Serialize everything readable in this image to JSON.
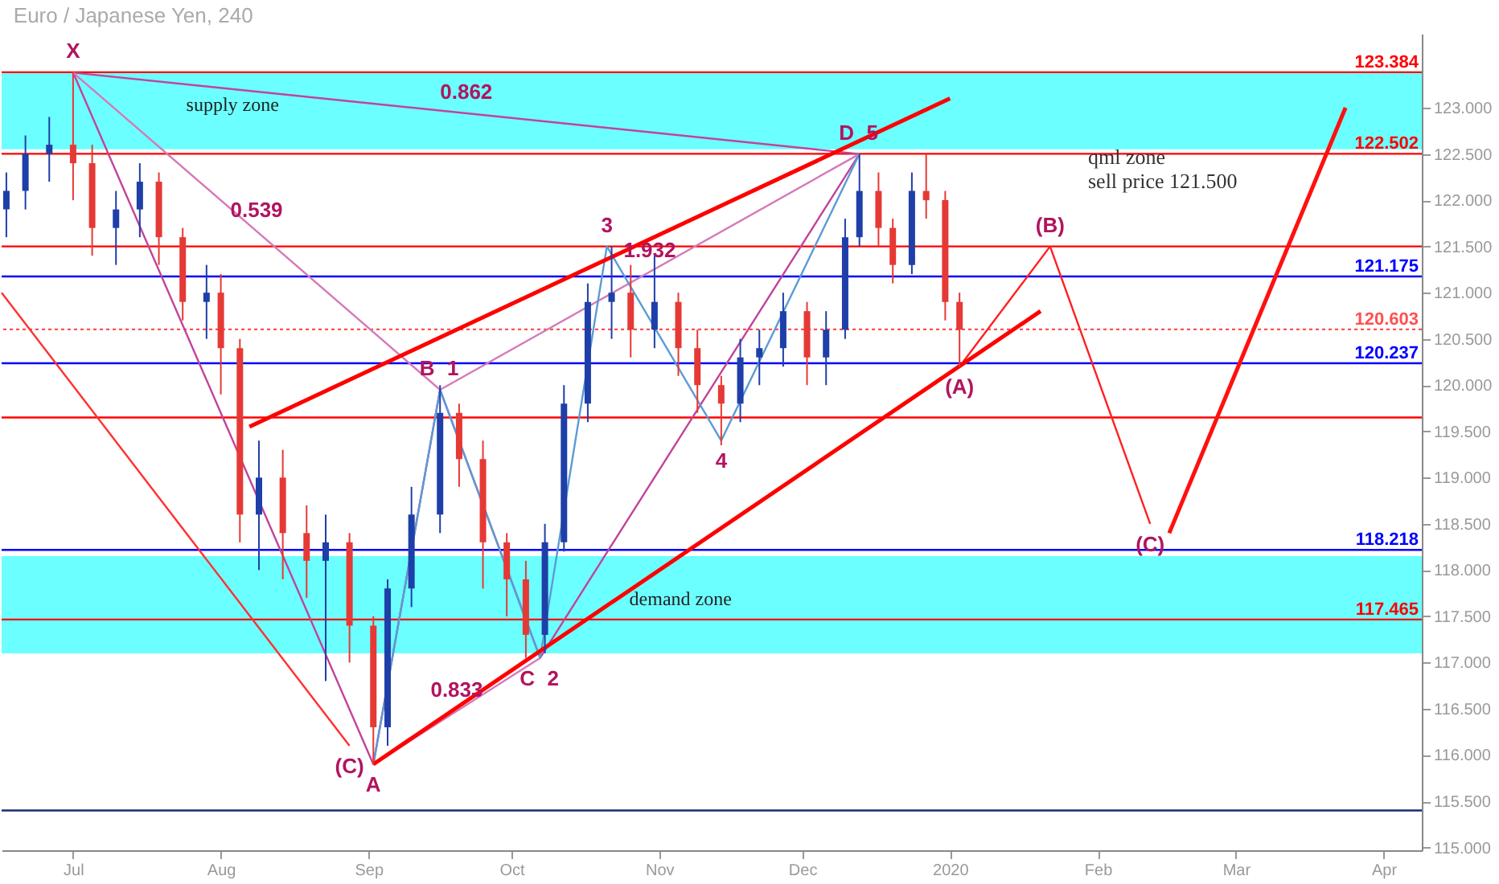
{
  "chart_data": {
    "type": "candlestick",
    "title": "Euro / Japanese Yen, 240",
    "x": [
      "2019-06-17",
      "2019-06-21",
      "2019-06-26",
      "2019-07-01",
      "2019-07-05",
      "2019-07-10",
      "2019-07-15",
      "2019-07-19",
      "2019-07-24",
      "2019-07-29",
      "2019-08-01",
      "2019-08-05",
      "2019-08-09",
      "2019-08-14",
      "2019-08-19",
      "2019-08-23",
      "2019-08-28",
      "2019-09-02",
      "2019-09-05",
      "2019-09-10",
      "2019-09-16",
      "2019-09-20",
      "2019-09-25",
      "2019-09-30",
      "2019-10-04",
      "2019-10-08",
      "2019-10-12",
      "2019-10-17",
      "2019-10-22",
      "2019-10-26",
      "2019-10-31",
      "2019-11-05",
      "2019-11-09",
      "2019-11-14",
      "2019-11-18",
      "2019-11-22",
      "2019-11-27",
      "2019-12-02",
      "2019-12-06",
      "2019-12-10",
      "2019-12-13",
      "2019-12-17",
      "2019-12-20",
      "2019-12-24",
      "2019-12-27",
      "2019-12-31",
      "2020-01-03"
    ],
    "ohlc": [
      [
        121.9,
        122.3,
        121.6,
        122.1
      ],
      [
        122.1,
        122.7,
        121.9,
        122.5
      ],
      [
        122.5,
        122.9,
        122.2,
        122.6
      ],
      [
        122.6,
        123.38,
        122.0,
        122.4
      ],
      [
        122.4,
        122.6,
        121.4,
        121.7
      ],
      [
        121.7,
        122.1,
        121.3,
        121.9
      ],
      [
        121.9,
        122.4,
        121.6,
        122.2
      ],
      [
        122.2,
        122.3,
        121.3,
        121.6
      ],
      [
        121.6,
        121.7,
        120.7,
        120.9
      ],
      [
        120.9,
        121.3,
        120.5,
        121.0
      ],
      [
        121.0,
        121.2,
        119.9,
        120.4
      ],
      [
        120.4,
        120.5,
        118.3,
        118.6
      ],
      [
        118.6,
        119.4,
        118.0,
        119.0
      ],
      [
        119.0,
        119.3,
        117.9,
        118.4
      ],
      [
        118.4,
        118.7,
        117.7,
        118.1
      ],
      [
        118.1,
        118.6,
        116.8,
        118.3
      ],
      [
        118.3,
        118.4,
        117.0,
        117.4
      ],
      [
        117.4,
        117.5,
        115.9,
        116.3
      ],
      [
        116.3,
        117.9,
        116.1,
        117.8
      ],
      [
        117.8,
        118.9,
        117.6,
        118.6
      ],
      [
        118.6,
        120.0,
        118.4,
        119.7
      ],
      [
        119.7,
        119.8,
        118.9,
        119.2
      ],
      [
        119.2,
        119.4,
        117.8,
        118.3
      ],
      [
        118.3,
        118.4,
        117.5,
        117.9
      ],
      [
        117.9,
        118.1,
        117.05,
        117.3
      ],
      [
        117.3,
        118.5,
        117.1,
        118.3
      ],
      [
        118.3,
        120.0,
        118.2,
        119.8
      ],
      [
        119.8,
        121.1,
        119.6,
        120.9
      ],
      [
        120.9,
        121.5,
        120.5,
        121.0
      ],
      [
        121.0,
        121.3,
        120.3,
        120.6
      ],
      [
        120.6,
        121.4,
        120.4,
        120.9
      ],
      [
        120.9,
        121.0,
        120.1,
        120.4
      ],
      [
        120.4,
        120.6,
        119.7,
        120.0
      ],
      [
        120.0,
        120.1,
        119.35,
        119.8
      ],
      [
        119.8,
        120.5,
        119.6,
        120.3
      ],
      [
        120.3,
        120.6,
        120.0,
        120.4
      ],
      [
        120.4,
        121.0,
        120.2,
        120.8
      ],
      [
        120.8,
        120.9,
        120.0,
        120.3
      ],
      [
        120.3,
        120.8,
        120.0,
        120.6
      ],
      [
        120.6,
        121.8,
        120.5,
        121.6
      ],
      [
        121.6,
        122.5,
        121.5,
        122.1
      ],
      [
        122.1,
        122.3,
        121.5,
        121.7
      ],
      [
        121.7,
        121.8,
        121.1,
        121.3
      ],
      [
        121.3,
        122.3,
        121.2,
        122.1
      ],
      [
        122.1,
        122.5,
        121.8,
        122.0
      ],
      [
        122.0,
        122.1,
        120.7,
        120.9
      ],
      [
        120.9,
        121.0,
        120.2,
        120.6
      ]
    ],
    "series": [
      {
        "type": "line",
        "color": "#c2439a",
        "x": [
          "2019-07-01",
          "2019-09-02",
          "2019-09-16",
          "2019-10-07",
          "2019-12-13"
        ],
        "values": [
          123.38,
          115.9,
          119.95,
          117.05,
          122.5
        ]
      },
      {
        "type": "line",
        "color": "#c2439a",
        "x": [
          "2019-07-01",
          "2019-12-13"
        ],
        "values": [
          123.38,
          122.5
        ]
      },
      {
        "type": "line",
        "color": "#d47ab8",
        "x": [
          "2019-07-01",
          "2019-09-16"
        ],
        "values": [
          123.38,
          119.95
        ]
      },
      {
        "type": "line",
        "color": "#d47ab8",
        "x": [
          "2019-09-02",
          "2019-10-07"
        ],
        "values": [
          115.9,
          117.05
        ]
      },
      {
        "type": "line",
        "color": "#d47ab8",
        "x": [
          "2019-09-16",
          "2019-12-13"
        ],
        "values": [
          119.95,
          122.5
        ]
      },
      {
        "type": "line",
        "color": "#5b9bd5",
        "x": [
          "2019-09-02",
          "2019-09-16",
          "2019-10-07",
          "2019-10-21",
          "2019-11-14",
          "2019-12-13"
        ],
        "values": [
          115.9,
          119.95,
          117.05,
          121.5,
          119.4,
          122.5
        ]
      },
      {
        "type": "line",
        "color": "#ff2020",
        "x": [
          "2020-01-03",
          "2020-01-22",
          "2020-02-12"
        ],
        "values": [
          120.2,
          121.5,
          118.5
        ]
      },
      {
        "type": "line",
        "color": "#ff3030",
        "x": [
          "2019-06-16",
          "2019-08-28"
        ],
        "values": [
          121.0,
          116.1
        ]
      },
      {
        "type": "line",
        "color": "#ff1010",
        "x": [
          "2020-02-16",
          "2020-03-24"
        ],
        "values": [
          118.4,
          123.0
        ]
      },
      {
        "type": "line",
        "color": "#ff0000",
        "x": [
          "2019-08-07",
          "2020-01-01"
        ],
        "values": [
          119.55,
          123.1
        ]
      },
      {
        "type": "line",
        "color": "#ff0000",
        "x": [
          "2019-09-02",
          "2020-01-20"
        ],
        "values": [
          115.9,
          120.8
        ]
      }
    ],
    "xlim": [
      "2019-06-16",
      "2020-04-09"
    ],
    "xticks": [
      {
        "value": "2019-07-01",
        "label": "Jul"
      },
      {
        "value": "2019-08-01",
        "label": "Aug"
      },
      {
        "value": "2019-09-01",
        "label": "Sep"
      },
      {
        "value": "2019-10-01",
        "label": "Oct"
      },
      {
        "value": "2019-11-01",
        "label": "Nov"
      },
      {
        "value": "2019-12-01",
        "label": "Dec"
      },
      {
        "value": "2020-01-01",
        "label": "2020"
      },
      {
        "value": "2020-02-01",
        "label": "Feb"
      },
      {
        "value": "2020-03-01",
        "label": "Mar"
      },
      {
        "value": "2020-04-01",
        "label": "Apr"
      }
    ],
    "ylim": [
      114.97,
      123.8
    ],
    "yticks": [
      {
        "value": 115,
        "label": "115.000"
      },
      {
        "value": 115.5,
        "label": "115.500"
      },
      {
        "value": 116,
        "label": "116.000"
      },
      {
        "value": 116.5,
        "label": "116.500"
      },
      {
        "value": 117,
        "label": "117.000"
      },
      {
        "value": 117.5,
        "label": "117.500"
      },
      {
        "value": 118,
        "label": "118.000"
      },
      {
        "value": 118.5,
        "label": "118.500"
      },
      {
        "value": 119,
        "label": "119.000"
      },
      {
        "value": 119.5,
        "label": "119.500"
      },
      {
        "value": 120,
        "label": "120.000"
      },
      {
        "value": 120.5,
        "label": "120.500"
      },
      {
        "value": 121,
        "label": "121.000"
      },
      {
        "value": 121.5,
        "label": "121.500"
      },
      {
        "value": 122,
        "label": "122.000"
      },
      {
        "value": 122.5,
        "label": "122.500"
      },
      {
        "value": 123,
        "label": "123.000"
      }
    ],
    "bands": [
      {
        "axis": "y",
        "from": 122.55,
        "to": 123.38,
        "label": "supply zone",
        "color": "#52ffff"
      },
      {
        "axis": "y",
        "from": 117.1,
        "to": 118.15,
        "label": "demand zone",
        "color": "#52ffff"
      }
    ],
    "ref_lines": [
      {
        "axis": "y",
        "value": 123.384,
        "label": "123.384",
        "color": "#ff0000"
      },
      {
        "axis": "y",
        "value": 122.502,
        "label": "122.502",
        "color": "#ff0000"
      },
      {
        "axis": "y",
        "value": 121.175,
        "label": "121.175",
        "color": "#0000ff"
      },
      {
        "axis": "y",
        "value": 120.603,
        "label": "120.603",
        "color": "#ff5050",
        "line_style": "dotted"
      },
      {
        "axis": "y",
        "value": 120.237,
        "label": "120.237",
        "color": "#0000ff"
      },
      {
        "axis": "y",
        "value": 118.218,
        "label": "118.218",
        "color": "#0000ff"
      },
      {
        "axis": "y",
        "value": 117.465,
        "label": "117.465",
        "color": "#ff0000"
      },
      {
        "axis": "y",
        "value": 121.5,
        "color": "#ff0000"
      },
      {
        "axis": "y",
        "value": 119.65,
        "color": "#ff0000"
      },
      {
        "axis": "y",
        "value": 115.4,
        "color": "#1a2a6c"
      }
    ],
    "annotations": [
      "qml zone\nsell price 121.500",
      {
        "text": "X",
        "x": "2019-07-01",
        "y": 123.38
      },
      {
        "text": "A",
        "x": "2019-09-02",
        "y": 115.9
      },
      {
        "text": "B",
        "x": "2019-09-16",
        "y": 119.95
      },
      {
        "text": "C",
        "x": "2019-10-07",
        "y": 117.05
      },
      {
        "text": "D",
        "x": "2019-12-13",
        "y": 122.5
      },
      {
        "text": "1",
        "x": "2019-09-16",
        "y": 119.95
      },
      {
        "text": "2",
        "x": "2019-10-07",
        "y": 117.05
      },
      {
        "text": "3",
        "x": "2019-10-21",
        "y": 121.5
      },
      {
        "text": "4",
        "x": "2019-11-14",
        "y": 119.4
      },
      {
        "text": "5",
        "x": "2019-12-13",
        "y": 122.5
      },
      {
        "text": "(A)",
        "x": "2020-01-03",
        "y": 120.2
      },
      {
        "text": "(B)",
        "x": "2020-01-22",
        "y": 121.5
      },
      {
        "text": "(C)",
        "x": "2020-02-12",
        "y": 118.5
      },
      {
        "text": "(C)",
        "x": "2019-08-28",
        "y": 116.1
      },
      {
        "text": "0.862",
        "x": "2019-09-21T12:00",
        "y": 122.94
      },
      {
        "text": "0.539",
        "x": "2019-08-08T12:00",
        "y": 121.665
      },
      {
        "text": "1.932",
        "x": "2019-10-30",
        "y": 121.225
      },
      {
        "text": "0.833",
        "x": "2019-09-19T12:00",
        "y": 116.475
      }
    ],
    "grid": false
  }
}
